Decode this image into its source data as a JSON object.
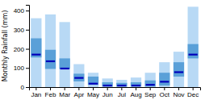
{
  "chart_data": {
    "type": "range_bar",
    "categories": [
      "Jan",
      "Feb",
      "Mar",
      "Apr",
      "May",
      "Jun",
      "Jul",
      "Aug",
      "Sep",
      "Oct",
      "Nov",
      "Dec"
    ],
    "series": [
      {
        "type": "range",
        "color": "#b8d9f5",
        "low": [
          0,
          0,
          0,
          0,
          0,
          0,
          0,
          0,
          0,
          0,
          0,
          0
        ],
        "high": [
          360,
          380,
          340,
          120,
          75,
          45,
          38,
          50,
          75,
          130,
          185,
          420
        ]
      },
      {
        "type": "range",
        "color": "#5aa0d8",
        "low": [
          155,
          95,
          95,
          30,
          12,
          3,
          3,
          3,
          3,
          8,
          55,
          150
        ],
        "high": [
          255,
          195,
          150,
          70,
          55,
          25,
          22,
          25,
          35,
          75,
          130,
          225
        ]
      },
      {
        "type": "tick",
        "color": "#0000bb",
        "values": [
          170,
          135,
          97,
          48,
          18,
          8,
          8,
          8,
          12,
          28,
          78,
          170
        ]
      }
    ],
    "ylabel": "Monthly Rainfall (mm)",
    "ylim": [
      0,
      430
    ],
    "yticks": [
      0,
      100,
      200,
      300,
      400
    ],
    "grid": false
  }
}
